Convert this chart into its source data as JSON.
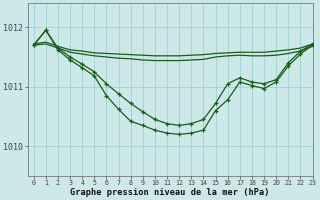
{
  "title": "Graphe pression niveau de la mer (hPa)",
  "bg_color": "#cce8e8",
  "grid_color": "#99cccc",
  "line_color": "#1a5c1a",
  "xlim": [
    -0.5,
    23
  ],
  "ylim": [
    1009.5,
    1012.4
  ],
  "yticks": [
    1010,
    1011,
    1012
  ],
  "xticks": [
    0,
    1,
    2,
    3,
    4,
    5,
    6,
    7,
    8,
    9,
    10,
    11,
    12,
    13,
    14,
    15,
    16,
    17,
    18,
    19,
    20,
    21,
    22,
    23
  ],
  "lines": [
    {
      "x": [
        0,
        1,
        2,
        3,
        4,
        5,
        6,
        7,
        8,
        9,
        10,
        11,
        12,
        13,
        14,
        15,
        16,
        17,
        18,
        19,
        20,
        21,
        22,
        23
      ],
      "y": [
        1011.72,
        1011.75,
        1011.68,
        1011.62,
        1011.6,
        1011.57,
        1011.56,
        1011.55,
        1011.54,
        1011.53,
        1011.52,
        1011.52,
        1011.52,
        1011.53,
        1011.54,
        1011.56,
        1011.57,
        1011.58,
        1011.58,
        1011.58,
        1011.6,
        1011.62,
        1011.65,
        1011.72
      ],
      "with_markers": false,
      "lw": 0.9
    },
    {
      "x": [
        0,
        1,
        2,
        3,
        4,
        5,
        6,
        7,
        8,
        9,
        10,
        11,
        12,
        13,
        14,
        15,
        16,
        17,
        18,
        19,
        20,
        21,
        22,
        23
      ],
      "y": [
        1011.7,
        1011.72,
        1011.65,
        1011.58,
        1011.55,
        1011.52,
        1011.5,
        1011.48,
        1011.47,
        1011.45,
        1011.44,
        1011.44,
        1011.44,
        1011.45,
        1011.46,
        1011.5,
        1011.52,
        1011.53,
        1011.52,
        1011.52,
        1011.53,
        1011.56,
        1011.6,
        1011.68
      ],
      "with_markers": false,
      "lw": 0.9
    },
    {
      "x": [
        0,
        1,
        2,
        3,
        4,
        5,
        6,
        7,
        8,
        9,
        10,
        11,
        12,
        13,
        14,
        15,
        16,
        17,
        18,
        19,
        20,
        21,
        22,
        23
      ],
      "y": [
        1011.7,
        1011.95,
        1011.65,
        1011.5,
        1011.38,
        1011.25,
        1011.05,
        1010.88,
        1010.72,
        1010.58,
        1010.45,
        1010.38,
        1010.35,
        1010.38,
        1010.45,
        1010.72,
        1011.05,
        1011.15,
        1011.08,
        1011.05,
        1011.12,
        1011.4,
        1011.6,
        1011.72
      ],
      "with_markers": true,
      "lw": 0.9
    },
    {
      "x": [
        0,
        1,
        2,
        3,
        4,
        5,
        6,
        7,
        8,
        9,
        10,
        11,
        12,
        13,
        14,
        15,
        16,
        17,
        18,
        19,
        20,
        21,
        22,
        23
      ],
      "y": [
        1011.7,
        1011.95,
        1011.62,
        1011.45,
        1011.32,
        1011.18,
        1010.85,
        1010.62,
        1010.42,
        1010.35,
        1010.27,
        1010.22,
        1010.2,
        1010.22,
        1010.27,
        1010.6,
        1010.78,
        1011.08,
        1011.02,
        1010.97,
        1011.08,
        1011.35,
        1011.55,
        1011.7
      ],
      "with_markers": true,
      "lw": 0.9
    }
  ]
}
